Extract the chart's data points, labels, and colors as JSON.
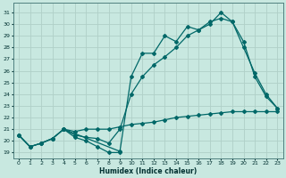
{
  "xlabel": "Humidex (Indice chaleur)",
  "bg_color": "#c8e8e0",
  "grid_color": "#b0d0c8",
  "line_color": "#006868",
  "xlim": [
    -0.5,
    23.5
  ],
  "ylim": [
    18.5,
    31.8
  ],
  "yticks": [
    19,
    20,
    21,
    22,
    23,
    24,
    25,
    26,
    27,
    28,
    29,
    30,
    31
  ],
  "xticks": [
    0,
    1,
    2,
    3,
    4,
    5,
    6,
    7,
    8,
    9,
    10,
    11,
    12,
    13,
    14,
    15,
    16,
    17,
    18,
    19,
    20,
    21,
    22,
    23
  ],
  "line1_x": [
    0,
    1,
    2,
    3,
    4,
    9,
    10,
    11,
    12,
    13,
    14,
    15,
    16,
    17,
    18,
    19,
    20,
    21,
    22,
    23
  ],
  "line1_y": [
    20.5,
    19.5,
    19.8,
    20.2,
    21.0,
    19.1,
    25.5,
    27.5,
    27.5,
    29.0,
    28.5,
    29.8,
    29.5,
    30.0,
    31.0,
    30.2,
    28.5,
    25.5,
    23.8,
    22.8
  ],
  "line2_x": [
    0,
    1,
    2,
    3,
    4,
    5,
    6,
    7,
    8,
    9,
    10,
    11,
    12,
    13,
    14,
    15,
    16,
    17,
    18,
    19,
    20,
    21,
    22,
    23
  ],
  "line2_y": [
    20.5,
    19.5,
    19.8,
    20.2,
    21.0,
    20.5,
    20.3,
    20.2,
    19.8,
    21.0,
    24.0,
    25.5,
    26.5,
    27.2,
    28.0,
    29.0,
    29.5,
    30.2,
    30.5,
    30.2,
    28.0,
    25.8,
    24.0,
    22.8
  ],
  "line3_x": [
    0,
    1,
    2,
    3,
    4,
    5,
    6,
    7,
    8,
    9,
    10,
    11,
    12,
    13,
    14,
    15,
    16,
    17,
    18,
    19,
    20,
    21,
    22,
    23
  ],
  "line3_y": [
    20.5,
    19.5,
    19.8,
    20.2,
    21.0,
    20.8,
    21.0,
    21.0,
    21.0,
    21.2,
    21.4,
    21.5,
    21.6,
    21.8,
    22.0,
    22.1,
    22.2,
    22.3,
    22.4,
    22.5,
    22.5,
    22.5,
    22.5,
    22.5
  ],
  "line4_x": [
    4,
    5,
    6,
    7,
    8,
    9
  ],
  "line4_y": [
    21.0,
    20.3,
    20.0,
    19.5,
    19.0,
    19.0
  ]
}
